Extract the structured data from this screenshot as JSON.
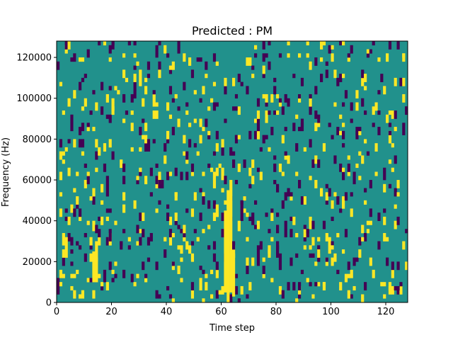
{
  "chart_data": {
    "type": "heatmap",
    "title": "Predicted : PM",
    "xlabel": "Time step",
    "ylabel": "Frequency (Hz)",
    "xlim": [
      0,
      128
    ],
    "ylim": [
      0,
      128000
    ],
    "x_ticks": [
      0,
      20,
      40,
      60,
      80,
      100,
      120
    ],
    "y_ticks": [
      0,
      20000,
      40000,
      60000,
      80000,
      100000,
      120000
    ],
    "y_tick_labels": [
      "0",
      "20000",
      "40000",
      "60000",
      "80000",
      "100000",
      "120000"
    ],
    "grid_cols": 128,
    "grid_rows": 128,
    "value_range": [
      -1,
      1
    ],
    "colors": {
      "background": "#21918c",
      "high": "#fde725",
      "low": "#440154"
    },
    "high_cells": [
      [
        13,
        10,
        25
      ],
      [
        14,
        10,
        30
      ],
      [
        13,
        35,
        40
      ],
      [
        61,
        5,
        45
      ],
      [
        62,
        0,
        55
      ],
      [
        63,
        5,
        60
      ],
      [
        64,
        3,
        28
      ],
      [
        57,
        40,
        44
      ],
      [
        58,
        42,
        44
      ],
      [
        1,
        12,
        16
      ],
      [
        2,
        12,
        14
      ],
      [
        3,
        22,
        32
      ],
      [
        2,
        28,
        32
      ],
      [
        12,
        20,
        24
      ],
      [
        11,
        62,
        64
      ],
      [
        12,
        50,
        52
      ],
      [
        13,
        52,
        56
      ],
      [
        14,
        64,
        66
      ],
      [
        35,
        96,
        98
      ],
      [
        37,
        58,
        62
      ],
      [
        37,
        110,
        114
      ],
      [
        45,
        10,
        12
      ],
      [
        50,
        88,
        90
      ],
      [
        56,
        64,
        66
      ],
      [
        60,
        60,
        66
      ],
      [
        66,
        35,
        40
      ],
      [
        66,
        64,
        68
      ],
      [
        68,
        50,
        52
      ],
      [
        70,
        62,
        66
      ],
      [
        87,
        62,
        64
      ],
      [
        92,
        60,
        62
      ],
      [
        95,
        22,
        26
      ],
      [
        97,
        6,
        10
      ],
      [
        100,
        26,
        28
      ],
      [
        104,
        86,
        88
      ],
      [
        106,
        2,
        6
      ],
      [
        108,
        6,
        8
      ],
      [
        110,
        72,
        74
      ],
      [
        111,
        30,
        32
      ],
      [
        112,
        48,
        50
      ],
      [
        116,
        62,
        64
      ],
      [
        121,
        68,
        70
      ],
      [
        122,
        64,
        66
      ],
      [
        123,
        46,
        48
      ],
      [
        124,
        56,
        60
      ],
      [
        126,
        106,
        110
      ],
      [
        124,
        52,
        54
      ]
    ],
    "low_cells": [
      [
        14,
        34,
        38
      ],
      [
        18,
        52,
        62
      ],
      [
        19,
        30,
        36
      ],
      [
        24,
        12,
        16
      ],
      [
        29,
        34,
        38
      ],
      [
        33,
        76,
        80
      ],
      [
        37,
        56,
        60
      ],
      [
        40,
        40,
        44
      ],
      [
        47,
        60,
        64
      ],
      [
        53,
        48,
        52
      ],
      [
        61,
        58,
        62
      ],
      [
        64,
        26,
        30
      ],
      [
        67,
        44,
        50
      ],
      [
        69,
        14,
        18
      ],
      [
        70,
        56,
        58
      ],
      [
        72,
        48,
        50
      ],
      [
        76,
        42,
        44
      ],
      [
        81,
        20,
        24
      ],
      [
        83,
        36,
        40
      ],
      [
        86,
        84,
        88
      ],
      [
        94,
        8,
        10
      ],
      [
        100,
        40,
        42
      ],
      [
        101,
        68,
        72
      ],
      [
        104,
        76,
        78
      ],
      [
        105,
        32,
        36
      ],
      [
        107,
        94,
        98
      ],
      [
        111,
        96,
        100
      ],
      [
        114,
        56,
        60
      ],
      [
        117,
        102,
        104
      ],
      [
        120,
        18,
        22
      ],
      [
        121,
        82,
        84
      ],
      [
        124,
        6,
        8
      ],
      [
        126,
        82,
        88
      ],
      [
        127,
        92,
        96
      ],
      [
        66,
        108,
        112
      ],
      [
        82,
        2,
        6
      ]
    ],
    "scatter_seed": 7,
    "high_density": 0.045,
    "low_density": 0.045
  }
}
